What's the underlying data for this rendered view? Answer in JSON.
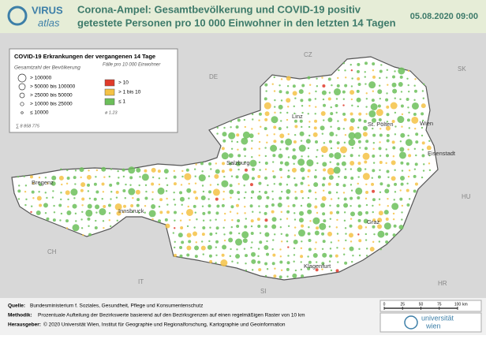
{
  "header": {
    "logo_top": "VIRUS",
    "logo_bottom": "atlas",
    "title_line1": "Corona-Ampel: Gesamtbevölkerung und COVID-19 positiv",
    "title_line2": "getestete Personen pro 10 000 Einwohner in den letzten 14 Tagen",
    "date": "05.08.2020 09:00"
  },
  "legend": {
    "title": "COVID-19 Erkrankungen der vergangenen 14 Tage",
    "population_heading": "Gesamtzahl der Bevölkerung",
    "population_classes": [
      "> 100000",
      "> 50000  bis  100000",
      "> 25000  bis  50000",
      "> 10000  bis  25000",
      "≤ 10000"
    ],
    "total": "∑  8 858 775",
    "cases_heading": "Fälle pro 10 000 Einwohner",
    "case_classes": [
      "> 10",
      "> 1  bis  10",
      "≤ 1"
    ],
    "average": "ø  1.23"
  },
  "map": {
    "countries": [
      "DE",
      "CZ",
      "SK",
      "HU",
      "SI",
      "IT",
      "CH",
      "HR"
    ],
    "cities": [
      "Linz",
      "Wien",
      "St. Pölten",
      "Eisenstadt",
      "Salzburg",
      "Bregenz",
      "Innsbruck",
      "Graz",
      "Klagenfurt"
    ]
  },
  "footer": {
    "source_label": "Quelle:",
    "source": "Bundesministerium f. Soziales, Gesundheit, Pflege und Konsumentenschutz",
    "method_label": "Methodik:",
    "method": "Prozentuale Aufteilung der Bezirkswerte basierend auf den Bezirksgrenzen auf einen regelmäßigen Raster von 10 km",
    "publisher_label": "Herausgeber:",
    "publisher": "© 2020 Universität Wien, Institut für Geographie und Regionalforschung, Kartographie und Geoinformation",
    "scale_ticks": [
      0,
      25,
      50,
      75,
      100
    ],
    "scale_unit": "km",
    "university": "universität",
    "university2": "wien"
  }
}
